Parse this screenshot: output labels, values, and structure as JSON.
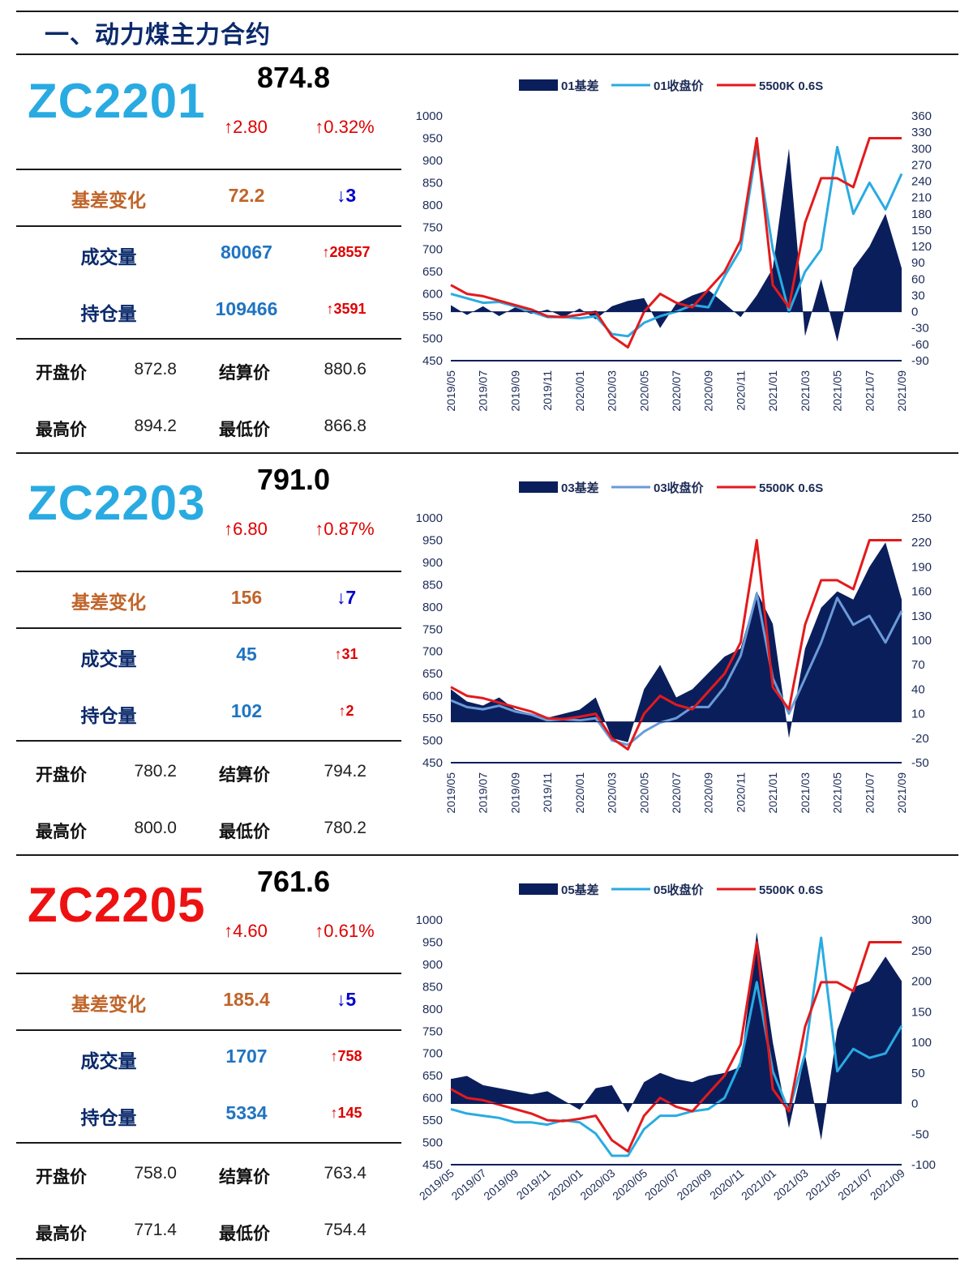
{
  "page_title": "一、动力煤主力合约",
  "colors": {
    "up": "#e00000",
    "down": "#0000cc",
    "label_orange": "#c0642a",
    "label_navy": "#0b2a6b",
    "value_blue": "#1f74c2",
    "basis_fill": "#0b1e5c",
    "close_line_1": "#29abe2",
    "close_line_2": "#6a9bd8",
    "spot_line": "#e31a1c"
  },
  "contracts": [
    {
      "code": "ZC2201",
      "code_color": "#29abe2",
      "price": "874.8",
      "chg_abs": "↑2.80",
      "chg_pct": "↑0.32%",
      "basis_label": "基差变化",
      "basis_val": "72.2",
      "basis_chg": "↓3",
      "volume_label": "成交量",
      "volume_val": "80067",
      "volume_chg": "↑28557",
      "oi_label": "持仓量",
      "oi_val": "109466",
      "oi_chg": "↑3591",
      "open_label": "开盘价",
      "open_val": "872.8",
      "settle_label": "结算价",
      "settle_val": "880.6",
      "high_label": "最高价",
      "high_val": "894.2",
      "low_label": "最低价",
      "low_val": "866.8"
    },
    {
      "code": "ZC2203",
      "code_color": "#29abe2",
      "price": "791.0",
      "chg_abs": "↑6.80",
      "chg_pct": "↑0.87%",
      "basis_label": "基差变化",
      "basis_val": "156",
      "basis_chg": "↓7",
      "volume_label": "成交量",
      "volume_val": "45",
      "volume_chg": "↑31",
      "oi_label": "持仓量",
      "oi_val": "102",
      "oi_chg": "↑2",
      "open_label": "开盘价",
      "open_val": "780.2",
      "settle_label": "结算价",
      "settle_val": "794.2",
      "high_label": "最高价",
      "high_val": "800.0",
      "low_label": "最低价",
      "low_val": "780.2"
    },
    {
      "code": "ZC2205",
      "code_color": "#ee1111",
      "price": "761.6",
      "chg_abs": "↑4.60",
      "chg_pct": "↑0.61%",
      "basis_label": "基差变化",
      "basis_val": "185.4",
      "basis_chg": "↓5",
      "volume_label": "成交量",
      "volume_val": "1707",
      "volume_chg": "↑758",
      "oi_label": "持仓量",
      "oi_val": "5334",
      "oi_chg": "↑145",
      "open_label": "开盘价",
      "open_val": "758.0",
      "settle_label": "结算价",
      "settle_val": "763.4",
      "high_label": "最高价",
      "high_val": "771.4",
      "low_label": "最低价",
      "low_val": "754.4"
    }
  ],
  "chart_data": [
    {
      "type": "line",
      "x_ticks": [
        "2019/05",
        "2019/07",
        "2019/09",
        "2019/11",
        "2020/01",
        "2020/03",
        "2020/05",
        "2020/07",
        "2020/09",
        "2020/11",
        "2021/01",
        "2021/03",
        "2021/05",
        "2021/07",
        "2021/09"
      ],
      "y_left_ticks": [
        450,
        500,
        550,
        600,
        650,
        700,
        750,
        800,
        850,
        900,
        950,
        1000
      ],
      "y_right_ticks": [
        -90,
        -60,
        -30,
        0,
        30,
        60,
        90,
        120,
        150,
        180,
        210,
        240,
        270,
        300,
        330,
        360
      ],
      "ylim_left": [
        450,
        1000
      ],
      "ylim_right": [
        -90,
        360
      ],
      "legend_position": "top",
      "series": [
        {
          "name": "01基差",
          "axis": "right",
          "kind": "area",
          "x": [
            0,
            1,
            2,
            3,
            4,
            5,
            6,
            7,
            8,
            9,
            10,
            11,
            12,
            13,
            14,
            15,
            16,
            17,
            18,
            19,
            20,
            21,
            22,
            23,
            24,
            25,
            26,
            27,
            28
          ],
          "values": [
            12,
            -6,
            10,
            -8,
            8,
            -4,
            4,
            -10,
            6,
            -14,
            10,
            20,
            25,
            -30,
            15,
            30,
            40,
            15,
            -10,
            30,
            80,
            300,
            -45,
            60,
            -55,
            80,
            120,
            180,
            80
          ]
        },
        {
          "name": "01收盘价",
          "axis": "left",
          "kind": "line",
          "x": [
            0,
            1,
            2,
            3,
            4,
            5,
            6,
            7,
            8,
            9,
            10,
            11,
            12,
            13,
            14,
            15,
            16,
            17,
            18,
            19,
            20,
            21,
            22,
            23,
            24,
            25,
            26,
            27,
            28
          ],
          "values": [
            600,
            590,
            580,
            582,
            572,
            560,
            548,
            548,
            545,
            550,
            510,
            505,
            535,
            550,
            560,
            575,
            570,
            640,
            700,
            930,
            700,
            560,
            650,
            700,
            930,
            780,
            850,
            790,
            870
          ]
        },
        {
          "name": "5500K 0.6S",
          "axis": "left",
          "kind": "line",
          "x": [
            0,
            1,
            2,
            3,
            4,
            5,
            6,
            7,
            8,
            9,
            10,
            11,
            12,
            13,
            14,
            15,
            16,
            17,
            18,
            19,
            20,
            21,
            22,
            23,
            24,
            25,
            26,
            27,
            28
          ],
          "values": [
            620,
            600,
            595,
            585,
            575,
            565,
            550,
            548,
            553,
            560,
            505,
            480,
            560,
            600,
            580,
            570,
            610,
            650,
            720,
            950,
            620,
            570,
            760,
            860,
            860,
            840,
            950,
            950,
            950
          ]
        }
      ]
    },
    {
      "type": "line",
      "x_ticks": [
        "2019/05",
        "2019/07",
        "2019/09",
        "2019/11",
        "2020/01",
        "2020/03",
        "2020/05",
        "2020/07",
        "2020/09",
        "2020/11",
        "2021/01",
        "2021/03",
        "2021/05",
        "2021/07",
        "2021/09"
      ],
      "y_left_ticks": [
        450,
        500,
        550,
        600,
        650,
        700,
        750,
        800,
        850,
        900,
        950,
        1000
      ],
      "y_right_ticks": [
        -50,
        -20,
        10,
        40,
        70,
        100,
        130,
        160,
        190,
        220,
        250
      ],
      "ylim_left": [
        450,
        1000
      ],
      "ylim_right": [
        -50,
        250
      ],
      "legend_position": "top",
      "series": [
        {
          "name": "03基差",
          "axis": "right",
          "kind": "area",
          "x": [
            0,
            1,
            2,
            3,
            4,
            5,
            6,
            7,
            8,
            9,
            10,
            11,
            12,
            13,
            14,
            15,
            16,
            17,
            18,
            19,
            20,
            21,
            22,
            23,
            24,
            25,
            26,
            27,
            28
          ],
          "values": [
            40,
            25,
            20,
            30,
            15,
            10,
            5,
            10,
            15,
            30,
            -20,
            -25,
            40,
            70,
            30,
            40,
            60,
            80,
            90,
            160,
            120,
            -20,
            90,
            140,
            160,
            150,
            190,
            220,
            150
          ]
        },
        {
          "name": "03收盘价",
          "axis": "left",
          "kind": "line",
          "x": [
            0,
            1,
            2,
            3,
            4,
            5,
            6,
            7,
            8,
            9,
            10,
            11,
            12,
            13,
            14,
            15,
            16,
            17,
            18,
            19,
            20,
            21,
            22,
            23,
            24,
            25,
            26,
            27,
            28
          ],
          "values": [
            590,
            575,
            570,
            578,
            565,
            558,
            545,
            548,
            545,
            550,
            500,
            490,
            520,
            540,
            550,
            575,
            575,
            620,
            690,
            830,
            640,
            560,
            640,
            720,
            820,
            760,
            780,
            720,
            791
          ]
        },
        {
          "name": "5500K 0.6S",
          "axis": "left",
          "kind": "line",
          "x": [
            0,
            1,
            2,
            3,
            4,
            5,
            6,
            7,
            8,
            9,
            10,
            11,
            12,
            13,
            14,
            15,
            16,
            17,
            18,
            19,
            20,
            21,
            22,
            23,
            24,
            25,
            26,
            27,
            28
          ],
          "values": [
            620,
            600,
            595,
            585,
            575,
            565,
            550,
            548,
            553,
            560,
            505,
            480,
            560,
            600,
            580,
            570,
            610,
            650,
            720,
            950,
            620,
            570,
            760,
            860,
            860,
            840,
            950,
            950,
            950
          ]
        }
      ]
    },
    {
      "type": "line",
      "x_ticks": [
        "2019/05",
        "2019/07",
        "2019/09",
        "2019/11",
        "2020/01",
        "2020/03",
        "2020/05",
        "2020/07",
        "2020/09",
        "2020/11",
        "2021/01",
        "2021/03",
        "2021/05",
        "2021/07",
        "2021/09"
      ],
      "y_left_ticks": [
        450,
        500,
        550,
        600,
        650,
        700,
        750,
        800,
        850,
        900,
        950,
        1000
      ],
      "y_right_ticks": [
        -100,
        -50,
        0,
        50,
        100,
        150,
        200,
        250,
        300
      ],
      "ylim_left": [
        450,
        1000
      ],
      "ylim_right": [
        -100,
        300
      ],
      "legend_position": "top",
      "series": [
        {
          "name": "05基差",
          "axis": "right",
          "kind": "area",
          "x": [
            0,
            1,
            2,
            3,
            4,
            5,
            6,
            7,
            8,
            9,
            10,
            11,
            12,
            13,
            14,
            15,
            16,
            17,
            18,
            19,
            20,
            21,
            22,
            23,
            24,
            25,
            26,
            27,
            28
          ],
          "values": [
            40,
            45,
            30,
            25,
            20,
            15,
            20,
            5,
            -10,
            25,
            30,
            -15,
            35,
            50,
            40,
            35,
            45,
            50,
            60,
            280,
            100,
            -40,
            80,
            -60,
            120,
            190,
            200,
            240,
            200
          ]
        },
        {
          "name": "05收盘价",
          "axis": "left",
          "kind": "line",
          "x": [
            0,
            1,
            2,
            3,
            4,
            5,
            6,
            7,
            8,
            9,
            10,
            11,
            12,
            13,
            14,
            15,
            16,
            17,
            18,
            19,
            20,
            21,
            22,
            23,
            24,
            25,
            26,
            27,
            28
          ],
          "values": [
            575,
            565,
            560,
            555,
            545,
            545,
            540,
            550,
            545,
            520,
            470,
            470,
            530,
            560,
            560,
            570,
            575,
            600,
            680,
            860,
            660,
            570,
            700,
            960,
            660,
            710,
            690,
            700,
            762
          ]
        },
        {
          "name": "5500K 0.6S",
          "axis": "left",
          "kind": "line",
          "x": [
            0,
            1,
            2,
            3,
            4,
            5,
            6,
            7,
            8,
            9,
            10,
            11,
            12,
            13,
            14,
            15,
            16,
            17,
            18,
            19,
            20,
            21,
            22,
            23,
            24,
            25,
            26,
            27,
            28
          ],
          "values": [
            620,
            600,
            595,
            585,
            575,
            565,
            550,
            548,
            553,
            560,
            505,
            480,
            560,
            600,
            580,
            570,
            610,
            650,
            720,
            950,
            620,
            570,
            760,
            860,
            860,
            840,
            950,
            950,
            950
          ]
        }
      ]
    }
  ]
}
